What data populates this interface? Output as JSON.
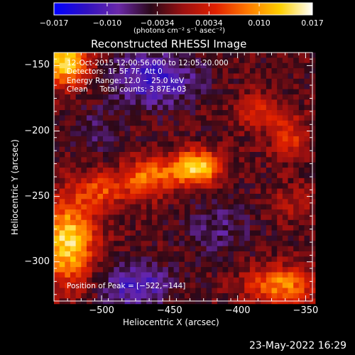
{
  "chart_data": {
    "type": "heatmap",
    "title": "Reconstructed RHESSI Image",
    "xlabel": "Heliocentric X (arcsec)",
    "ylabel": "Heliocentric Y (arcsec)",
    "xlim": [
      -535,
      -345
    ],
    "ylim": [
      -330,
      -140
    ],
    "xticks": [
      -500,
      -450,
      -400,
      -350
    ],
    "xtick_labels": [
      "−500",
      "−450",
      "−400",
      "−350"
    ],
    "yticks": [
      -300,
      -250,
      -200,
      -150
    ],
    "ytick_labels": [
      "−300",
      "−250",
      "−200",
      "−150"
    ],
    "colorbar": {
      "range": [
        -0.017,
        0.017
      ],
      "tick_values": [
        -0.017,
        -0.01,
        -0.0034,
        0.0034,
        0.01,
        0.017
      ],
      "tick_labels": [
        "−0.017",
        "−0.010",
        "−0.0034",
        "0.0034",
        "0.010",
        "0.017"
      ],
      "units": "(photons cm⁻² s⁻¹ asec⁻²)",
      "colors": [
        "#0000ff",
        "#3010c0",
        "#6a28a8",
        "#2a0818",
        "#9c1010",
        "#e02000",
        "#ff7a00",
        "#ffd000",
        "#ffffff"
      ]
    },
    "annotation_lines": [
      "12-Oct-2015 12:00:56.000 to 12:05:20.000",
      "Detectors: 1F 5F 7F, Att 0",
      "Energy Range: 12.0 − 25.0 keV",
      "Clean     Total counts: 3.87E+03"
    ],
    "peak_annotation": "Position of Peak = [−522,−144]",
    "peak_position": [
      -522,
      -144
    ],
    "value_grid": {
      "x_range": [
        -535,
        -345
      ],
      "y_range": [
        -330,
        -140
      ],
      "pixel_arcsec": 4,
      "features": [
        {
          "kind": "blob",
          "x": -430,
          "y": -228,
          "amplitude": 0.017,
          "sigma_x": 12,
          "sigma_y": 9
        },
        {
          "kind": "blob",
          "x": -465,
          "y": -235,
          "amplitude": 0.011,
          "sigma_x": 14,
          "sigma_y": 10
        },
        {
          "kind": "blob",
          "x": -500,
          "y": -245,
          "amplitude": 0.008,
          "sigma_x": 14,
          "sigma_y": 9
        },
        {
          "kind": "blob",
          "x": -525,
          "y": -285,
          "amplitude": 0.017,
          "sigma_x": 14,
          "sigma_y": 22
        },
        {
          "kind": "blob",
          "x": -528,
          "y": -148,
          "amplitude": 0.017,
          "sigma_x": 13,
          "sigma_y": 12
        },
        {
          "kind": "blob",
          "x": -385,
          "y": -185,
          "amplitude": 0.006,
          "sigma_x": 12,
          "sigma_y": 10
        },
        {
          "kind": "blob",
          "x": -362,
          "y": -205,
          "amplitude": 0.007,
          "sigma_x": 10,
          "sigma_y": 12
        },
        {
          "kind": "blob",
          "x": -368,
          "y": -318,
          "amplitude": 0.012,
          "sigma_x": 18,
          "sigma_y": 10
        },
        {
          "kind": "blob",
          "x": -360,
          "y": -255,
          "amplitude": 0.004,
          "sigma_x": 10,
          "sigma_y": 10
        },
        {
          "kind": "blob",
          "x": -462,
          "y": -160,
          "amplitude": -0.009,
          "sigma_x": 22,
          "sigma_y": 14
        },
        {
          "kind": "blob",
          "x": -475,
          "y": -318,
          "amplitude": -0.008,
          "sigma_x": 18,
          "sigma_y": 12
        },
        {
          "kind": "blob",
          "x": -415,
          "y": -275,
          "amplitude": -0.004,
          "sigma_x": 16,
          "sigma_y": 14
        },
        {
          "kind": "blob",
          "x": -505,
          "y": -200,
          "amplitude": -0.003,
          "sigma_x": 12,
          "sigma_y": 12
        }
      ],
      "background": -0.0028
    }
  },
  "footer_timestamp": "23-May-2022 16:29"
}
